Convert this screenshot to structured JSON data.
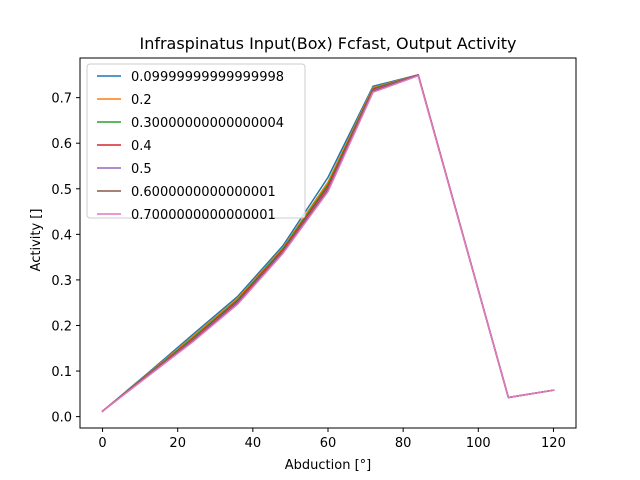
{
  "chart_data": {
    "type": "line",
    "title": "Infraspinatus Input(Box) Fcfast, Output Activity",
    "xlabel": "Abduction [°]",
    "ylabel": "Activity []",
    "xlim": [
      -6,
      126
    ],
    "ylim": [
      -0.025,
      0.787
    ],
    "xticks": [
      0,
      20,
      40,
      60,
      80,
      100,
      120
    ],
    "yticks": [
      0.0,
      0.1,
      0.2,
      0.3,
      0.4,
      0.5,
      0.6,
      0.7
    ],
    "legend_position": "upper-left",
    "grid": false,
    "x": [
      0,
      12,
      24,
      36,
      48,
      60,
      72,
      84,
      108,
      120
    ],
    "series": [
      {
        "name": "0.09999999999999998",
        "color": "#1f77b4",
        "values": [
          0.012,
          0.095,
          0.18,
          0.264,
          0.375,
          0.525,
          0.725,
          0.75,
          0.042,
          0.058
        ]
      },
      {
        "name": "0.2",
        "color": "#ff7f0e",
        "values": [
          0.012,
          0.093,
          0.176,
          0.26,
          0.37,
          0.515,
          0.722,
          0.75,
          0.042,
          0.058
        ]
      },
      {
        "name": "0.30000000000000004",
        "color": "#2ca02c",
        "values": [
          0.012,
          0.092,
          0.173,
          0.257,
          0.368,
          0.51,
          0.72,
          0.75,
          0.042,
          0.058
        ]
      },
      {
        "name": "0.4",
        "color": "#d62728",
        "values": [
          0.012,
          0.091,
          0.17,
          0.254,
          0.365,
          0.505,
          0.718,
          0.75,
          0.042,
          0.058
        ]
      },
      {
        "name": "0.5",
        "color": "#9467bd",
        "values": [
          0.012,
          0.09,
          0.168,
          0.251,
          0.362,
          0.5,
          0.716,
          0.75,
          0.042,
          0.058
        ]
      },
      {
        "name": "0.6000000000000001",
        "color": "#8c564b",
        "values": [
          0.012,
          0.089,
          0.166,
          0.249,
          0.36,
          0.497,
          0.714,
          0.749,
          0.042,
          0.058
        ]
      },
      {
        "name": "0.7000000000000001",
        "color": "#e377c2",
        "values": [
          0.012,
          0.088,
          0.164,
          0.247,
          0.358,
          0.494,
          0.712,
          0.748,
          0.042,
          0.058
        ]
      }
    ]
  }
}
